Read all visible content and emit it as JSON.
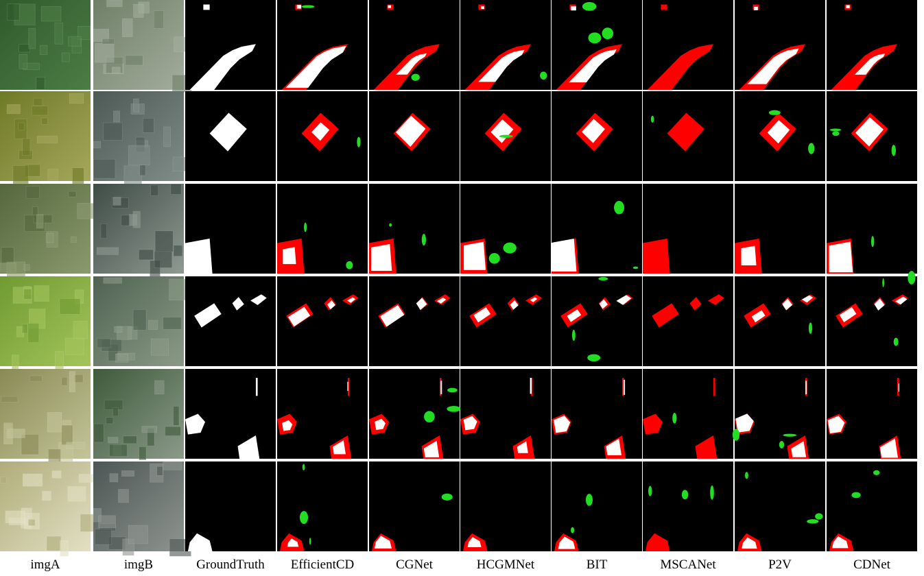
{
  "columns": [
    "imgA",
    "imgB",
    "GroundTruth",
    "EfficientCD",
    "CGNet",
    "HCGMNet",
    "BIT",
    "MSCANet",
    "P2V",
    "CDNet"
  ]
}
